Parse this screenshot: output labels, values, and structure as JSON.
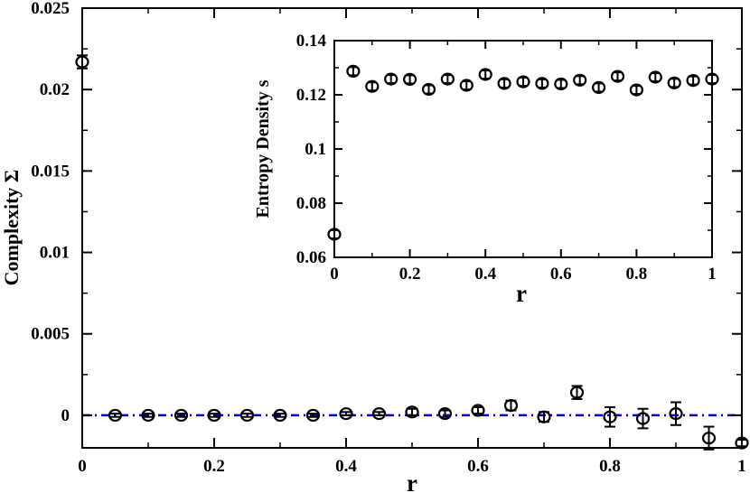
{
  "chart_data": [
    {
      "type": "scatter",
      "title": "",
      "xlabel": "r",
      "ylabel": "Complexity Σ",
      "xlim": [
        0,
        1
      ],
      "ylim": [
        -0.002,
        0.025
      ],
      "x_ticks": [
        0,
        0.2,
        0.4,
        0.6,
        0.8,
        1
      ],
      "x_tick_labels": [
        "0",
        "0.2",
        "0.4",
        "0.6",
        "0.8",
        "1"
      ],
      "y_ticks": [
        0,
        0.005,
        0.01,
        0.015,
        0.02,
        0.025
      ],
      "y_tick_labels": [
        "0",
        "0.005",
        "0.01",
        "0.015",
        "0.02",
        "0.025"
      ],
      "grid": false,
      "legend": "none",
      "marker": "open-circle",
      "color": "#000000",
      "reference_line": {
        "y": 0,
        "style": "dash-dot",
        "color": "#0000cc"
      },
      "series": [
        {
          "name": "",
          "x": [
            0,
            0.05,
            0.1,
            0.15,
            0.2,
            0.25,
            0.3,
            0.35,
            0.4,
            0.45,
            0.5,
            0.55,
            0.6,
            0.65,
            0.7,
            0.75,
            0.8,
            0.85,
            0.9,
            0.95,
            1.0
          ],
          "y": [
            0.0217,
            0.0,
            0.0,
            0.0,
            0.0,
            0.0,
            0.0,
            0.0,
            0.0001,
            0.0001,
            0.0002,
            0.0001,
            0.0003,
            0.0006,
            -0.0001,
            0.0014,
            -0.0001,
            -0.0002,
            0.0001,
            -0.0014,
            -0.0017
          ],
          "error": [
            0.0004,
            0.0001,
            0.0001,
            0.0001,
            0.0001,
            0.0001,
            0.0001,
            0.0001,
            0.0001,
            0.0001,
            0.0002,
            0.0002,
            0.0002,
            0.0003,
            0.0003,
            0.0004,
            0.0006,
            0.0006,
            0.0007,
            0.0007,
            0.0002
          ]
        }
      ]
    },
    {
      "type": "scatter",
      "title": "",
      "xlabel": "r",
      "ylabel": "Entropy Density s",
      "xlim": [
        0,
        1
      ],
      "ylim": [
        0.06,
        0.14
      ],
      "x_ticks": [
        0,
        0.2,
        0.4,
        0.6,
        0.8,
        1
      ],
      "x_tick_labels": [
        "0",
        "0.2",
        "0.4",
        "0.6",
        "0.8",
        "1"
      ],
      "y_ticks": [
        0.06,
        0.08,
        0.1,
        0.12,
        0.14
      ],
      "y_tick_labels": [
        "0.06",
        "0.08",
        "0.1",
        "0.12",
        "0.14"
      ],
      "grid": false,
      "legend": "none",
      "placement": "inset top-right",
      "marker": "open-circle",
      "color": "#000000",
      "series": [
        {
          "name": "",
          "x": [
            0,
            0.05,
            0.1,
            0.15,
            0.2,
            0.25,
            0.3,
            0.35,
            0.4,
            0.45,
            0.5,
            0.55,
            0.6,
            0.65,
            0.7,
            0.75,
            0.8,
            0.85,
            0.9,
            0.95,
            1.0
          ],
          "y": [
            0.0685,
            0.1287,
            0.1231,
            0.1258,
            0.1257,
            0.122,
            0.1258,
            0.1235,
            0.1275,
            0.1242,
            0.1248,
            0.1242,
            0.124,
            0.1254,
            0.1227,
            0.1268,
            0.1218,
            0.1265,
            0.1244,
            0.1253,
            0.1258
          ],
          "error": [
            0.0015,
            0.0015,
            0.0015,
            0.0015,
            0.0015,
            0.0015,
            0.0015,
            0.0015,
            0.0015,
            0.0015,
            0.0015,
            0.0015,
            0.0015,
            0.0015,
            0.0015,
            0.0015,
            0.0015,
            0.0015,
            0.0015,
            0.0015,
            0.0015
          ]
        }
      ]
    }
  ]
}
